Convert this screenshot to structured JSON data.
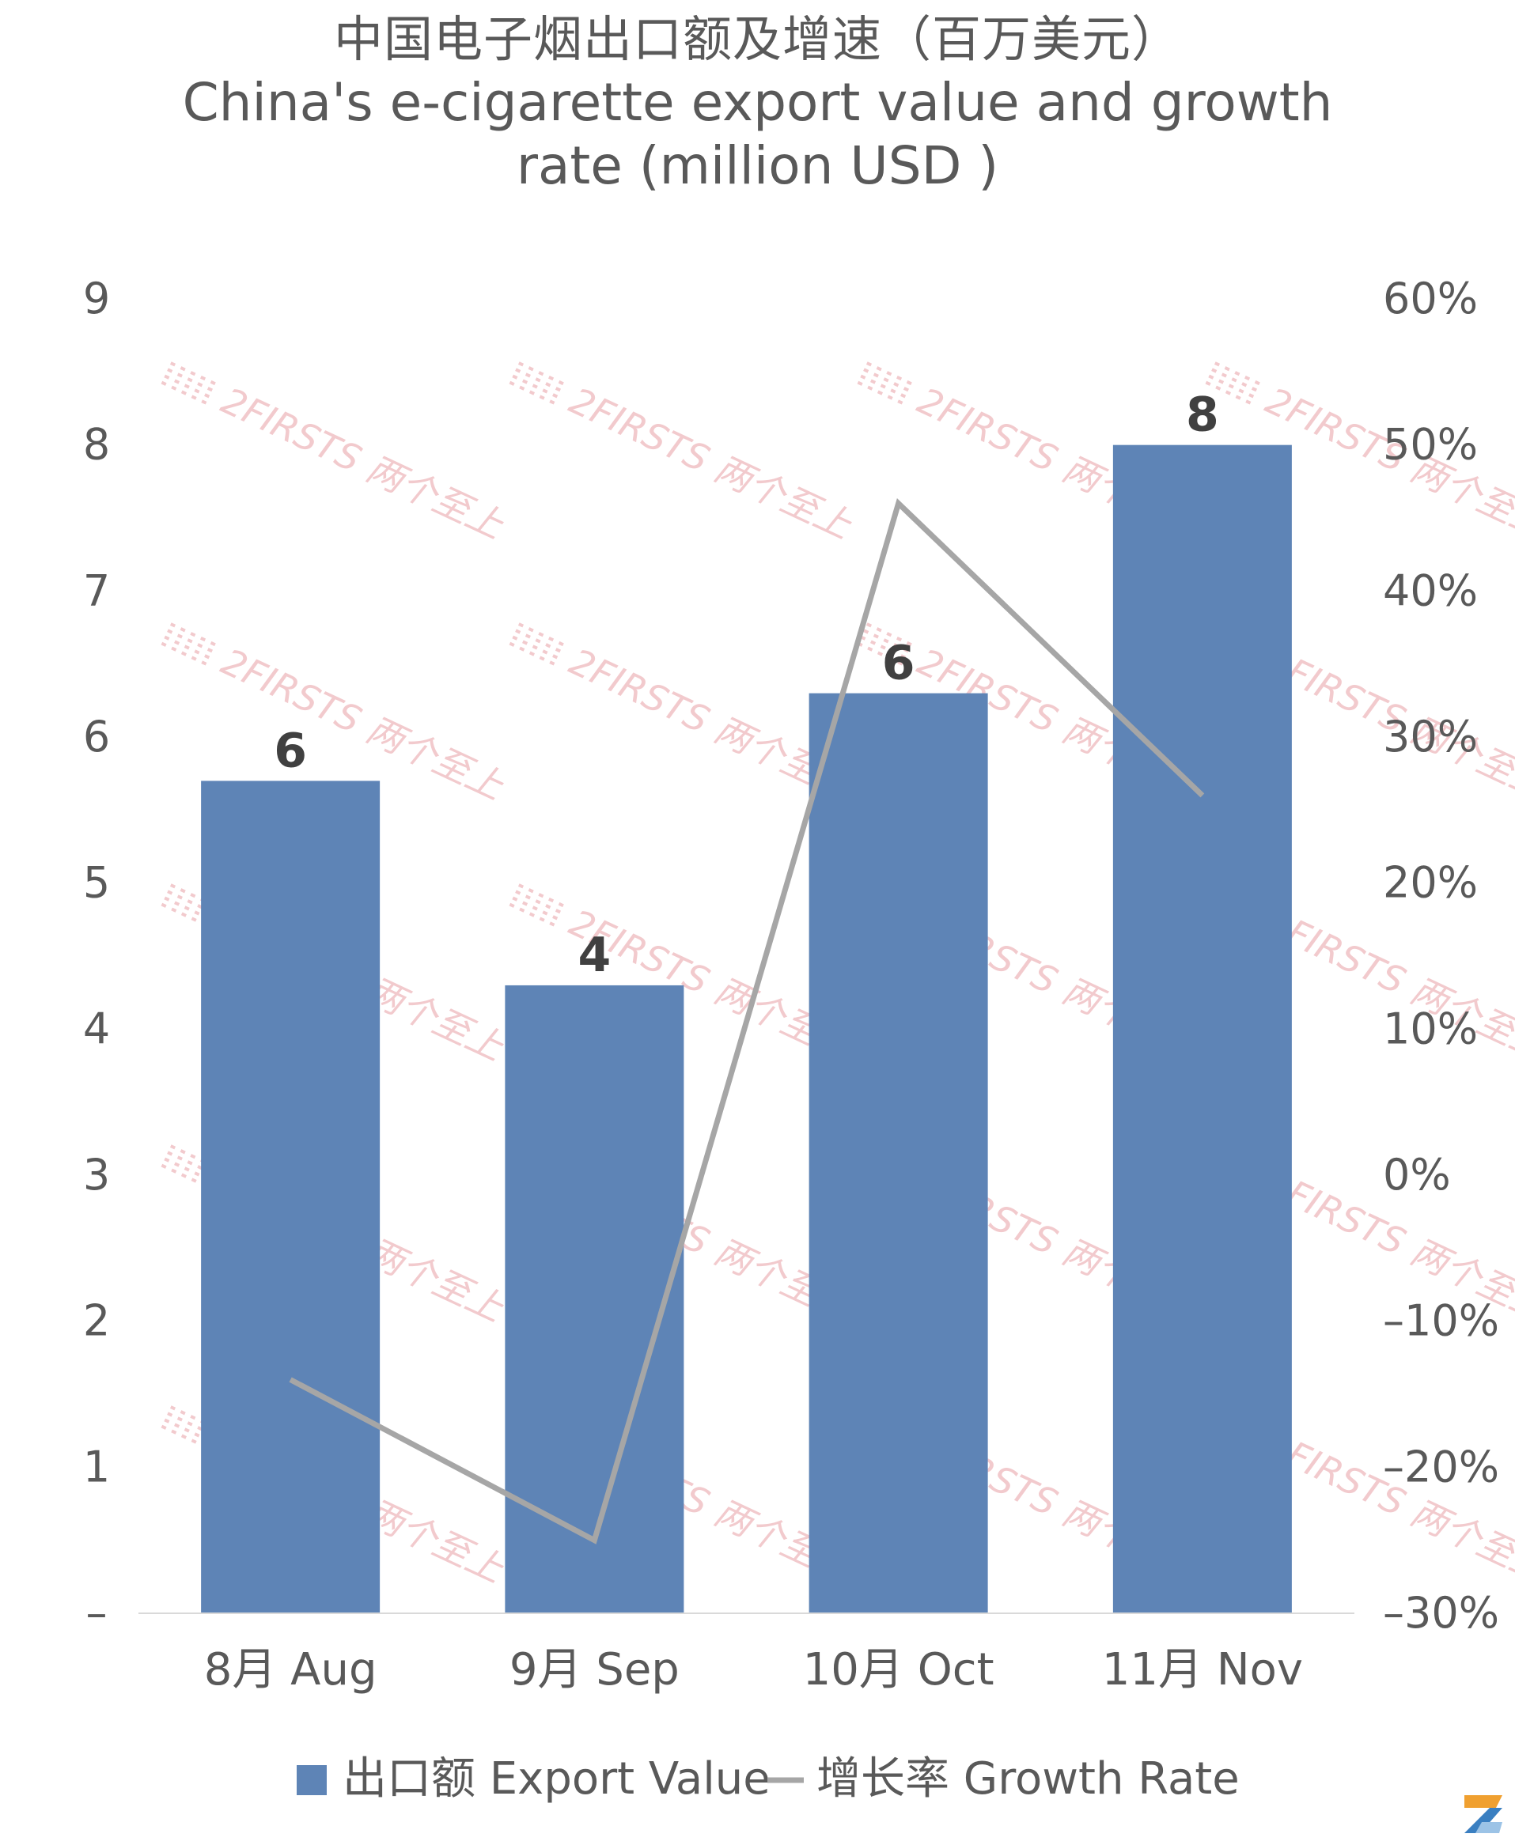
{
  "chart_data": {
    "type": "bar",
    "title": "中国电子烟出口额及增速（百万美元）",
    "subtitle_en": "China's e-cigarette export value and growth rate (million USD )",
    "title_lines": [
      "中国电子烟出口额及增速（百万美元）",
      "China's e-cigarette export value and growth",
      "rate (million USD )"
    ],
    "categories": [
      "8月 Aug",
      "9月 Sep",
      "10月 Oct",
      "11月 Nov"
    ],
    "series": [
      {
        "name": "出口额 Export Value",
        "type": "bar",
        "axis": "left",
        "color": "#5e84b6",
        "values": [
          5.7,
          4.3,
          6.3,
          8.0
        ],
        "data_labels": [
          "6",
          "4",
          "6",
          "8"
        ]
      },
      {
        "name": "增长率 Growth Rate",
        "type": "line",
        "axis": "right",
        "color": "#a6a6a6",
        "values": [
          -14,
          -25,
          46,
          26
        ]
      }
    ],
    "y_left": {
      "range": [
        0,
        9
      ],
      "ticks": [
        0,
        1,
        2,
        3,
        4,
        5,
        6,
        7,
        8,
        9
      ],
      "tick_labels": [
        "–",
        "1",
        "2",
        "3",
        "4",
        "5",
        "6",
        "7",
        "8",
        "9"
      ]
    },
    "y_right": {
      "range": [
        -30,
        60
      ],
      "ticks": [
        -30,
        -20,
        -10,
        0,
        10,
        20,
        30,
        40,
        50,
        60
      ],
      "tick_labels": [
        "–30%",
        "–20%",
        "–10%",
        "0%",
        "10%",
        "20%",
        "30%",
        "40%",
        "50%",
        "60%"
      ]
    },
    "grid": false,
    "legend": {
      "placement": "bottom",
      "items": [
        {
          "label": "出口额 Export Value",
          "symbol": "square",
          "color": "#5e84b6"
        },
        {
          "label": "增长率 Growth Rate",
          "symbol": "line",
          "color": "#a6a6a6"
        }
      ]
    },
    "watermark_text": "2FIRSTS 两个至上",
    "colors": {
      "text": "#595959",
      "axis_line": "#d9d9d9",
      "data_label": "#404040",
      "watermark": "#e8a0a6",
      "logo_orange": "#f0a030",
      "logo_blue": "#3a7fc1"
    }
  }
}
